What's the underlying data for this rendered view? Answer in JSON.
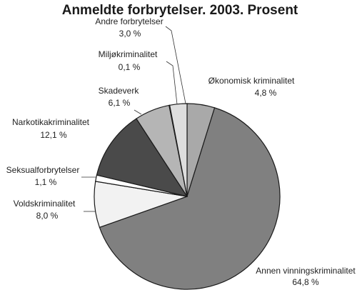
{
  "chart_data": {
    "type": "pie",
    "title": "Anmeldte forbrytelser. 2003. Prosent",
    "slices": [
      {
        "label": "Økonomisk kriminalitet",
        "value": 4.8,
        "value_label": "4,8 %",
        "color": "#a9a9a9"
      },
      {
        "label": "Annen vinningskriminalitet",
        "value": 64.8,
        "value_label": "64,8 %",
        "color": "#808080"
      },
      {
        "label": "Voldskriminalitet",
        "value": 8.0,
        "value_label": "8,0 %",
        "color": "#f2f2f2"
      },
      {
        "label": "Seksualforbrytelser",
        "value": 1.1,
        "value_label": "1,1 %",
        "color": "#ffffff"
      },
      {
        "label": "Narkotikakriminalitet",
        "value": 12.1,
        "value_label": "12,1 %",
        "color": "#4a4a4a"
      },
      {
        "label": "Skadeverk",
        "value": 6.1,
        "value_label": "6,1 %",
        "color": "#b5b5b5"
      },
      {
        "label": "Miljøkriminalitet",
        "value": 0.1,
        "value_label": "0,1 %",
        "color": "#d0d0d0"
      },
      {
        "label": "Andre forbrytelser",
        "value": 3.0,
        "value_label": "3,0 %",
        "color": "#dedede"
      }
    ]
  }
}
